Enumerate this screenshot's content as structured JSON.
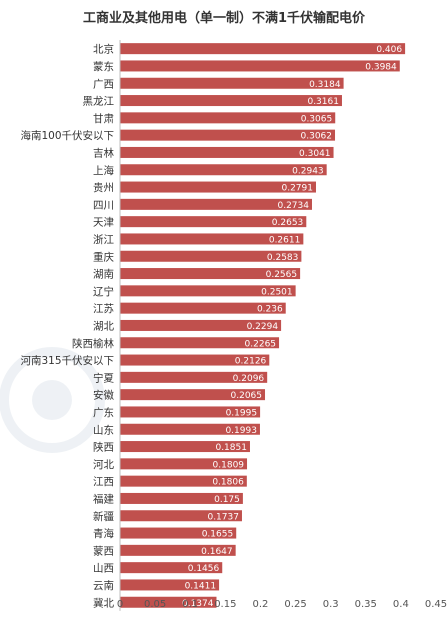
{
  "chart_data": {
    "type": "bar",
    "orientation": "horizontal",
    "title": "工商业及其他用电（单一制）不满1千伏输配电价",
    "categories": [
      "北京",
      "蒙东",
      "广西",
      "黑龙江",
      "甘肃",
      "海南100千伏安以下",
      "吉林",
      "上海",
      "贵州",
      "四川",
      "天津",
      "浙江",
      "重庆",
      "湖南",
      "辽宁",
      "江苏",
      "湖北",
      "陕西榆林",
      "河南315千伏安以下",
      "宁夏",
      "安徽",
      "广东",
      "山东",
      "陕西",
      "河北",
      "江西",
      "福建",
      "新疆",
      "青海",
      "蒙西",
      "山西",
      "云南",
      "冀北"
    ],
    "values": [
      0.406,
      0.3984,
      0.3184,
      0.3161,
      0.3065,
      0.3062,
      0.3041,
      0.2943,
      0.2791,
      0.2734,
      0.2653,
      0.2611,
      0.2583,
      0.2565,
      0.2501,
      0.236,
      0.2294,
      0.2265,
      0.2126,
      0.2096,
      0.2065,
      0.1995,
      0.1993,
      0.1851,
      0.1809,
      0.1806,
      0.175,
      0.1737,
      0.1655,
      0.1647,
      0.1456,
      0.1411,
      0.1374
    ],
    "value_labels": [
      "0.406",
      "0.3984",
      "0.3184",
      "0.3161",
      "0.3065",
      "0.3062",
      "0.3041",
      "0.2943",
      "0.2791",
      "0.2734",
      "0.2653",
      "0.2611",
      "0.2583",
      "0.2565",
      "0.2501",
      "0.236",
      "0.2294",
      "0.2265",
      "0.2126",
      "0.2096",
      "0.2065",
      "0.1995",
      "0.1993",
      "0.1851",
      "0.1809",
      "0.1806",
      "0.175",
      "0.1737",
      "0.1655",
      "0.1647",
      "0.1456",
      "0.1411",
      "0.1374"
    ],
    "xlim": [
      0,
      0.45
    ],
    "xticks": [
      "0",
      "0.05",
      "0.1",
      "0.15",
      "0.2",
      "0.25",
      "0.3",
      "0.35",
      "0.4",
      "0.45"
    ],
    "grid": false,
    "legend": "none",
    "bar_color": "#c0504d"
  }
}
